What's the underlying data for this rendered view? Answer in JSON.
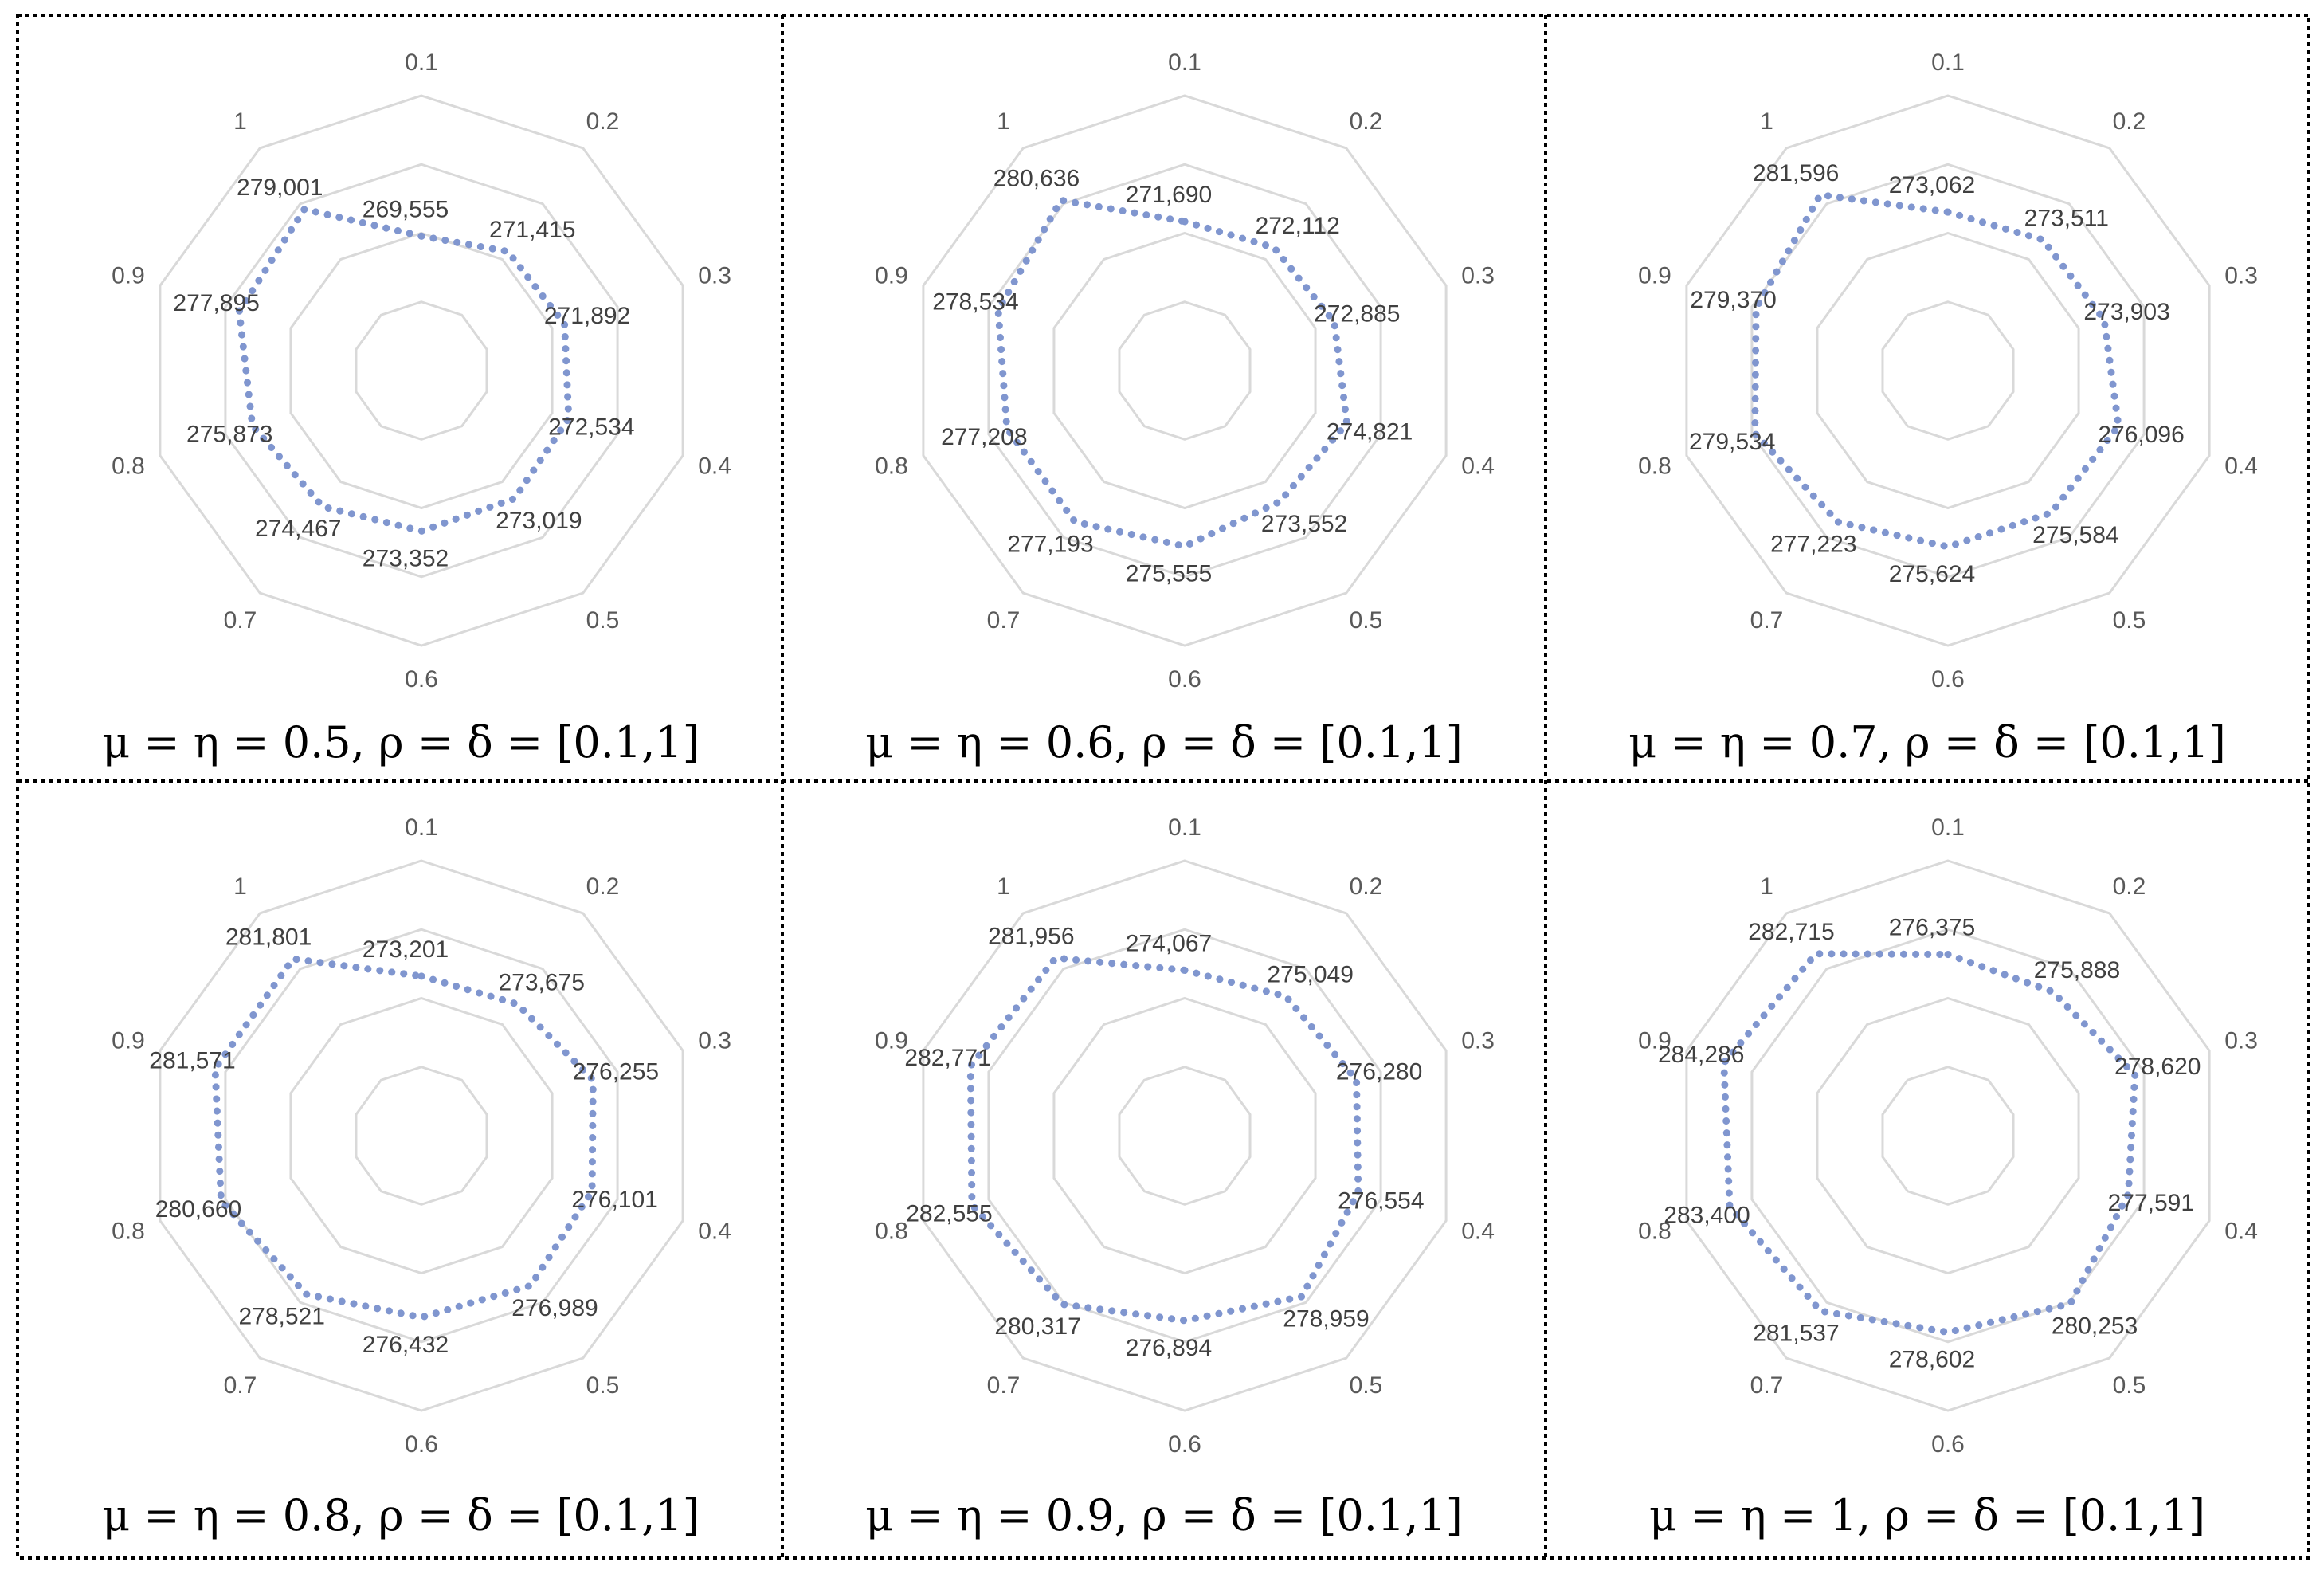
{
  "colors": {
    "series": "#8096cf",
    "grid": "#d9d9d9",
    "frame": "#000000",
    "leader": "#a6a6a6"
  },
  "chart_data": [
    {
      "type": "radar",
      "caption": "μ = η = 0.5, ρ = δ = [0.1,1]",
      "categories": [
        "0.1",
        "0.2",
        "0.3",
        "0.4",
        "0.5",
        "0.6",
        "0.7",
        "0.8",
        "0.9",
        "1"
      ],
      "values": [
        269555,
        271415,
        271892,
        272534,
        273019,
        273352,
        274467,
        275873,
        277895,
        279001
      ],
      "value_labels": [
        "269,555",
        "271,415",
        "271,892",
        "272,534",
        "273,019",
        "273,352",
        "274,467",
        "275,873",
        "277,895",
        "279,001"
      ],
      "grid": true
    },
    {
      "type": "radar",
      "caption": "μ = η = 0.6, ρ = δ = [0.1,1]",
      "categories": [
        "0.1",
        "0.2",
        "0.3",
        "0.4",
        "0.5",
        "0.6",
        "0.7",
        "0.8",
        "0.9",
        "1"
      ],
      "values": [
        271690,
        272112,
        272885,
        274821,
        273552,
        275555,
        277193,
        277208,
        278534,
        280636
      ],
      "value_labels": [
        "271,690",
        "272,112",
        "272,885",
        "274,821",
        "273,552",
        "275,555",
        "277,193",
        "277,208",
        "278,534",
        "280,636"
      ],
      "grid": true
    },
    {
      "type": "radar",
      "caption": "μ = η = 0.7, ρ = δ = [0.1,1]",
      "categories": [
        "0.1",
        "0.2",
        "0.3",
        "0.4",
        "0.5",
        "0.6",
        "0.7",
        "0.8",
        "0.9",
        "1"
      ],
      "values": [
        273062,
        273511,
        273903,
        276096,
        275584,
        275624,
        277223,
        279534,
        279370,
        281596
      ],
      "value_labels": [
        "273,062",
        "273,511",
        "273,903",
        "276,096",
        "275,584",
        "275,624",
        "277,223",
        "279,534",
        "279,370",
        "281,596"
      ],
      "grid": true
    },
    {
      "type": "radar",
      "caption": "μ = η = 0.8, ρ = δ = [0.1,1]",
      "categories": [
        "0.1",
        "0.2",
        "0.3",
        "0.4",
        "0.5",
        "0.6",
        "0.7",
        "0.8",
        "0.9",
        "1"
      ],
      "values": [
        273201,
        273675,
        276255,
        276101,
        276989,
        276432,
        278521,
        280660,
        281571,
        281801
      ],
      "value_labels": [
        "273,201",
        "273,675",
        "276,255",
        "276,101",
        "276,989",
        "276,432",
        "278,521",
        "280,660",
        "281,571",
        "281,801"
      ],
      "grid": true
    },
    {
      "type": "radar",
      "caption": "μ = η = 0.9, ρ = δ = [0.1,1]",
      "categories": [
        "0.1",
        "0.2",
        "0.3",
        "0.4",
        "0.5",
        "0.6",
        "0.7",
        "0.8",
        "0.9",
        "1"
      ],
      "values": [
        274067,
        275049,
        276280,
        276554,
        278959,
        276894,
        280317,
        282555,
        282771,
        281956
      ],
      "value_labels": [
        "274,067",
        "275,049",
        "276,280",
        "276,554",
        "278,959",
        "276,894",
        "280,317",
        "282,555",
        "282,771",
        "281,956"
      ],
      "grid": true
    },
    {
      "type": "radar",
      "caption": "μ = η = 1, ρ = δ = [0.1,1]",
      "categories": [
        "0.1",
        "0.2",
        "0.3",
        "0.4",
        "0.5",
        "0.6",
        "0.7",
        "0.8",
        "0.9",
        "1"
      ],
      "values": [
        276375,
        275888,
        278620,
        277591,
        280253,
        278602,
        281537,
        283400,
        284286,
        282715
      ],
      "value_labels": [
        "276,375",
        "275,888",
        "278,620",
        "277,591",
        "280,253",
        "278,602",
        "281,537",
        "283,400",
        "284,286",
        "282,715"
      ],
      "grid": true
    }
  ]
}
